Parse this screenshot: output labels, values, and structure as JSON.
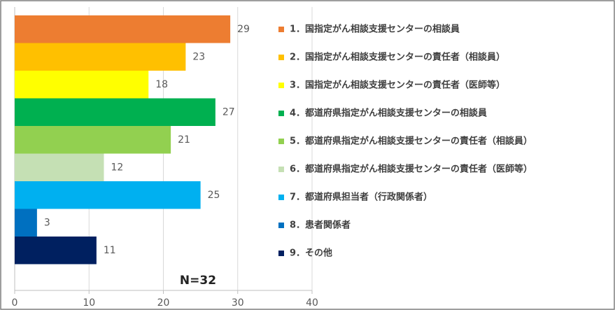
{
  "chart_data": {
    "type": "bar",
    "orientation": "horizontal",
    "categories": [
      "1．国指定がん相談支援センターの相談員",
      "2．国指定がん相談支援センターの責任者（相談員）",
      "3．国指定がん相談支援センターの責任者（医師等）",
      "4．都道府県指定がん相談支援センターの相談員",
      "5．都道府県指定がん相談支援センターの責任者（相談員）",
      "6．都道府県指定がん相談支援センターの責任者（医師等）",
      "7．都道府県担当者（行政関係者）",
      "8．患者関係者",
      "9．その他"
    ],
    "values": [
      29,
      23,
      18,
      27,
      21,
      12,
      25,
      3,
      11
    ],
    "colors": [
      "#ED7D31",
      "#FFC000",
      "#FFFF00",
      "#00B050",
      "#92D050",
      "#C5E0B4",
      "#00B0F0",
      "#0070C0",
      "#002060"
    ],
    "xlim": [
      0,
      40
    ],
    "xticks": [
      0,
      10,
      20,
      30,
      40
    ],
    "grid": true,
    "annotation": "N=32"
  }
}
